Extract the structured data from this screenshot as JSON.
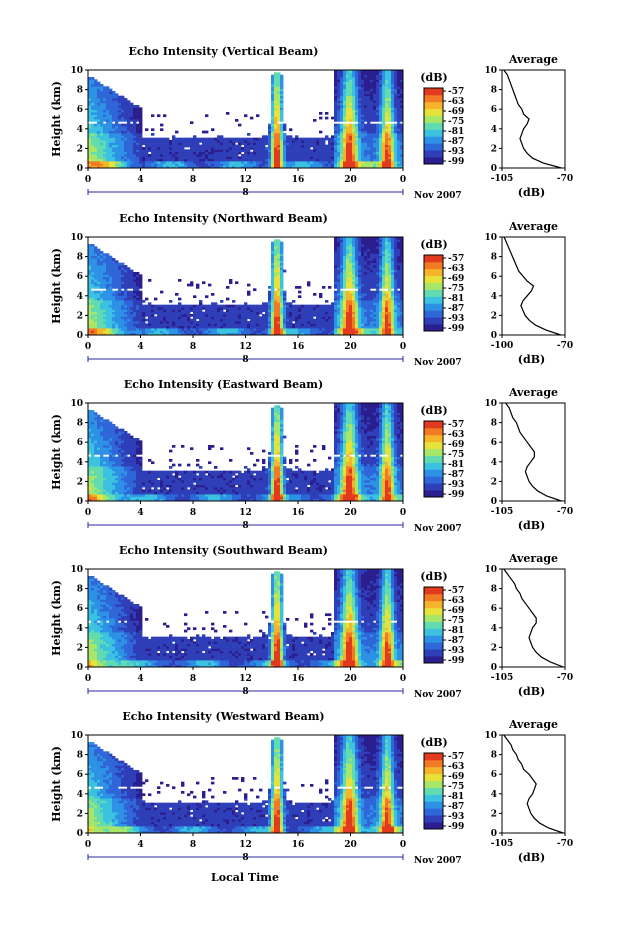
{
  "figure": {
    "xlabel": "Local Time",
    "date_label": "Nov 2007"
  },
  "colors": {
    "colormap": [
      "#2b1f8f",
      "#2e3fb8",
      "#2f66d8",
      "#2d92e6",
      "#3bc2e0",
      "#62dbb0",
      "#a8e668",
      "#e6e23a",
      "#f5b42a",
      "#f27a24",
      "#e23a1e"
    ],
    "background": "#ffffff"
  },
  "chart_data": [
    {
      "type": "heatmap",
      "title": "Echo Intensity (Vertical Beam)",
      "ylabel": "Height (km)",
      "ylim": [
        0,
        10
      ],
      "x_ticks": [
        "0",
        "4",
        "8",
        "12",
        "16",
        "20",
        "0"
      ],
      "day_marker": "8",
      "colorbar": {
        "unit": "(dB)",
        "ticks": [
          "-57",
          "-63",
          "-69",
          "-75",
          "-81",
          "-87",
          "-93",
          "-99"
        ]
      }
    },
    {
      "type": "line",
      "title": "Average",
      "xlabel": "(dB)",
      "xlim": [
        -105,
        -70
      ],
      "x_ticks": [
        "-105",
        "-70"
      ],
      "ylim": [
        0,
        10
      ],
      "y_ticks": [
        "0",
        "2",
        "4",
        "6",
        "8",
        "10"
      ],
      "y": [
        0,
        0.5,
        1,
        1.5,
        2,
        2.5,
        3,
        3.5,
        4,
        4.5,
        5,
        5.5,
        6,
        6.5,
        7,
        7.5,
        8,
        8.5,
        9,
        9.5,
        10
      ],
      "x": [
        -72,
        -82,
        -88,
        -91,
        -93,
        -94,
        -95,
        -94,
        -93,
        -91,
        -90,
        -93,
        -94,
        -96,
        -97,
        -98,
        -99,
        -100,
        -101,
        -102,
        -104
      ]
    },
    {
      "type": "heatmap",
      "title": "Echo Intensity (Northward Beam)",
      "ylabel": "Height (km)",
      "ylim": [
        0,
        10
      ],
      "x_ticks": [
        "0",
        "4",
        "8",
        "12",
        "16",
        "20",
        "0"
      ],
      "day_marker": "8",
      "colorbar": {
        "unit": "(dB)",
        "ticks": [
          "-57",
          "-63",
          "-69",
          "-75",
          "-81",
          "-87",
          "-93",
          "-99"
        ]
      }
    },
    {
      "type": "line",
      "title": "Average",
      "xlabel": "(dB)",
      "xlim": [
        -100,
        -70
      ],
      "x_ticks": [
        "-100",
        "-70"
      ],
      "ylim": [
        0,
        10
      ],
      "y_ticks": [
        "0",
        "2",
        "4",
        "6",
        "8",
        "10"
      ],
      "y": [
        0,
        0.5,
        1,
        1.5,
        2,
        2.5,
        3,
        3.5,
        4,
        4.5,
        5,
        5.5,
        6,
        6.5,
        7,
        7.5,
        8,
        8.5,
        9,
        9.5,
        10
      ],
      "x": [
        -72,
        -79,
        -84,
        -87,
        -89,
        -90,
        -91,
        -90,
        -88,
        -86,
        -85,
        -88,
        -90,
        -92,
        -93,
        -94,
        -95,
        -96,
        -97,
        -98,
        -99
      ]
    },
    {
      "type": "heatmap",
      "title": "Echo Intensity (Eastward Beam)",
      "ylabel": "Height (km)",
      "ylim": [
        0,
        10
      ],
      "x_ticks": [
        "0",
        "4",
        "8",
        "12",
        "16",
        "20",
        "0"
      ],
      "day_marker": "8",
      "colorbar": {
        "unit": "(dB)",
        "ticks": [
          "-57",
          "-63",
          "-69",
          "-75",
          "-81",
          "-87",
          "-93",
          "-99"
        ]
      }
    },
    {
      "type": "line",
      "title": "Average",
      "xlabel": "(dB)",
      "xlim": [
        -105,
        -70
      ],
      "x_ticks": [
        "-105",
        "-70"
      ],
      "ylim": [
        0,
        10
      ],
      "y_ticks": [
        "0",
        "2",
        "4",
        "6",
        "8",
        "10"
      ],
      "y": [
        0,
        0.5,
        1,
        1.5,
        2,
        2.5,
        3,
        3.5,
        4,
        4.5,
        5,
        5.5,
        6,
        6.5,
        7,
        7.5,
        8,
        8.5,
        9,
        9.5,
        10
      ],
      "x": [
        -72,
        -80,
        -85,
        -88,
        -90,
        -91,
        -92,
        -91,
        -89,
        -87,
        -87,
        -89,
        -91,
        -93,
        -95,
        -96,
        -97,
        -99,
        -100,
        -101,
        -103
      ]
    },
    {
      "type": "heatmap",
      "title": "Echo Intensity (Southward Beam)",
      "ylabel": "Height (km)",
      "ylim": [
        0,
        10
      ],
      "x_ticks": [
        "0",
        "4",
        "8",
        "12",
        "16",
        "20",
        "0"
      ],
      "day_marker": "8",
      "colorbar": {
        "unit": "(dB)",
        "ticks": [
          "-57",
          "-63",
          "-69",
          "-75",
          "-81",
          "-87",
          "-93",
          "-99"
        ]
      }
    },
    {
      "type": "line",
      "title": "Average",
      "xlabel": "(dB)",
      "xlim": [
        -105,
        -70
      ],
      "x_ticks": [
        "-105",
        "-70"
      ],
      "ylim": [
        0,
        10
      ],
      "y_ticks": [
        "0",
        "2",
        "4",
        "6",
        "8",
        "10"
      ],
      "y": [
        0,
        0.5,
        1,
        1.5,
        2,
        2.5,
        3,
        3.5,
        4,
        4.5,
        5,
        5.5,
        6,
        6.5,
        7,
        7.5,
        8,
        8.5,
        9,
        9.5,
        10
      ],
      "x": [
        -71,
        -78,
        -83,
        -86,
        -88,
        -89,
        -90,
        -89,
        -88,
        -86,
        -86,
        -88,
        -90,
        -92,
        -94,
        -95,
        -97,
        -98,
        -100,
        -102,
        -104
      ]
    },
    {
      "type": "heatmap",
      "title": "Echo Intensity (Westward Beam)",
      "ylabel": "Height (km)",
      "ylim": [
        0,
        10
      ],
      "x_ticks": [
        "0",
        "4",
        "8",
        "12",
        "16",
        "20",
        "0"
      ],
      "day_marker": "8",
      "colorbar": {
        "unit": "(dB)",
        "ticks": [
          "-57",
          "-63",
          "-69",
          "-75",
          "-81",
          "-87",
          "-93",
          "-99"
        ]
      }
    },
    {
      "type": "line",
      "title": "Average",
      "xlabel": "(dB)",
      "xlim": [
        -105,
        -70
      ],
      "x_ticks": [
        "-105",
        "-70"
      ],
      "ylim": [
        0,
        10
      ],
      "y_ticks": [
        "0",
        "2",
        "4",
        "6",
        "8",
        "10"
      ],
      "y": [
        0,
        0.5,
        1,
        1.5,
        2,
        2.5,
        3,
        3.5,
        4,
        4.5,
        5,
        5.5,
        6,
        6.5,
        7,
        7.5,
        8,
        8.5,
        9,
        9.5,
        10
      ],
      "x": [
        -71,
        -79,
        -84,
        -87,
        -89,
        -90,
        -91,
        -90,
        -88,
        -87,
        -86,
        -88,
        -90,
        -93,
        -94,
        -96,
        -97,
        -99,
        -100,
        -102,
        -104
      ]
    }
  ]
}
